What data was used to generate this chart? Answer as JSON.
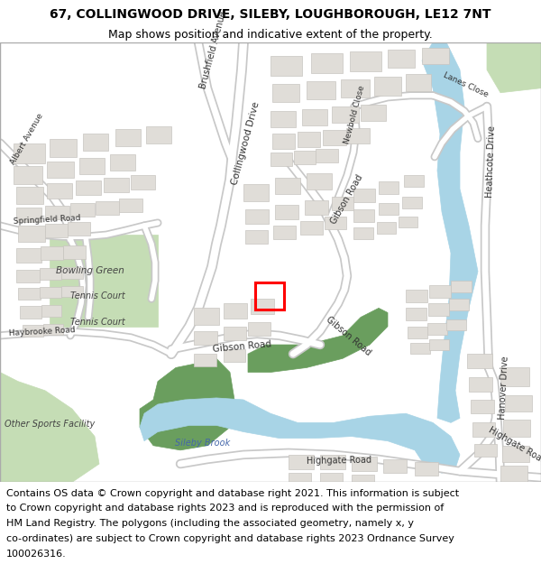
{
  "title_line1": "67, COLLINGWOOD DRIVE, SILEBY, LOUGHBOROUGH, LE12 7NT",
  "title_line2": "Map shows position and indicative extent of the property.",
  "footer_lines": [
    "Contains OS data © Crown copyright and database right 2021. This information is subject",
    "to Crown copyright and database rights 2023 and is reproduced with the permission of",
    "HM Land Registry. The polygons (including the associated geometry, namely x, y",
    "co-ordinates) are subject to Crown copyright and database rights 2023 Ordnance Survey",
    "100026316."
  ],
  "map_bg": "#ffffff",
  "road_color": "#ffffff",
  "road_outline": "#c8c8c8",
  "green_dark": "#6a9e5e",
  "green_light": "#c5ddb5",
  "water_color": "#a8d4e6",
  "building_color": "#e0ddd8",
  "building_edge": "#c8c5c0",
  "highlight_color": "#ff0000",
  "title_fontsize": 10,
  "subtitle_fontsize": 9,
  "footer_fontsize": 8
}
